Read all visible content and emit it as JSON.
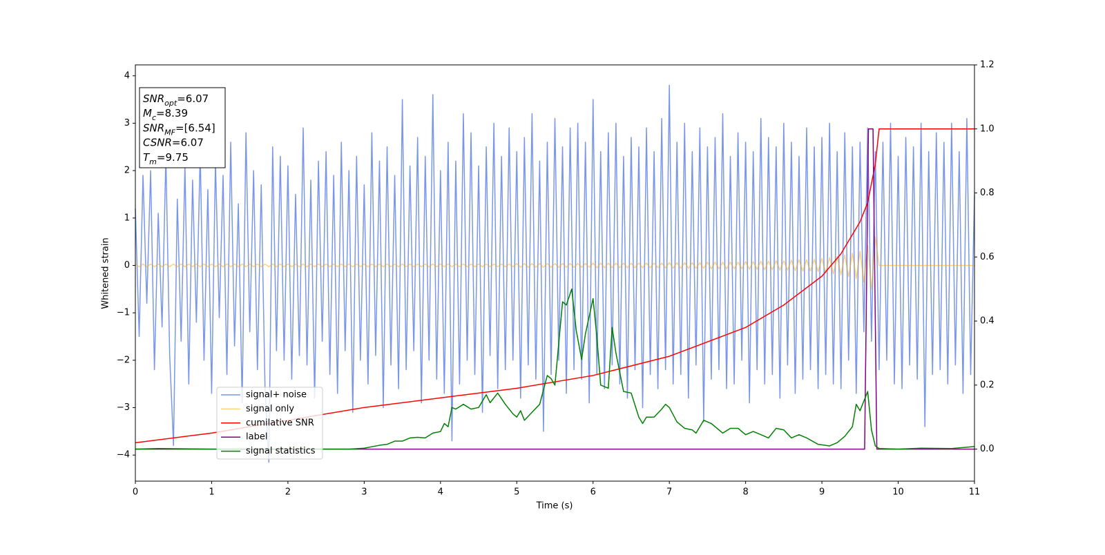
{
  "chart_data": {
    "type": "line",
    "xlabel": "Time (s)",
    "ylabel": "Whitened strain",
    "xlim": [
      0,
      11
    ],
    "xticks": [
      0,
      1,
      2,
      3,
      4,
      5,
      6,
      7,
      8,
      9,
      10,
      11
    ],
    "ylim": [
      -4.55,
      4.23
    ],
    "yticks": [
      {
        "value": -4,
        "label": "−4"
      },
      {
        "value": -3,
        "label": "−3"
      },
      {
        "value": -2,
        "label": "−2"
      },
      {
        "value": -1,
        "label": "−1"
      },
      0,
      1,
      2,
      3,
      4
    ],
    "y2lim": [
      -0.1,
      1.2
    ],
    "y2ticks": [
      {
        "value": 0,
        "label": "0.0"
      },
      0.2,
      0.4,
      0.6,
      0.8,
      {
        "value": 1,
        "label": "1.0"
      },
      1.2
    ],
    "legend": "lower left",
    "info_box": [
      {
        "symbol": "SNR",
        "subscript": "opt",
        "text": "=6.07"
      },
      {
        "symbol": "M",
        "subscript": "c",
        "text": "=8.39"
      },
      {
        "symbol": "SNR",
        "subscript": "MF",
        "text": "=[6.54]"
      },
      {
        "symbol": "CSNR",
        "text": "=6.07"
      },
      {
        "symbol": "T",
        "subscript": "m",
        "text": "=9.75"
      }
    ],
    "x": [
      0,
      0.05,
      0.1,
      0.15,
      0.2,
      0.25,
      0.3,
      0.35,
      0.4,
      0.45,
      0.5,
      0.55,
      0.6,
      0.65,
      0.7,
      0.75,
      0.8,
      0.85,
      0.9,
      0.95,
      1,
      1.05,
      1.1,
      1.15,
      1.2,
      1.25,
      1.3,
      1.35,
      1.4,
      1.45,
      1.5,
      1.55,
      1.6,
      1.65,
      1.7,
      1.75,
      1.8,
      1.85,
      1.9,
      1.95,
      2,
      2.05,
      2.1,
      2.15,
      2.2,
      2.25,
      2.3,
      2.35,
      2.4,
      2.45,
      2.5,
      2.55,
      2.6,
      2.65,
      2.7,
      2.75,
      2.8,
      2.85,
      2.9,
      2.95,
      3,
      3.05,
      3.1,
      3.15,
      3.2,
      3.25,
      3.3,
      3.35,
      3.4,
      3.45,
      3.5,
      3.55,
      3.6,
      3.65,
      3.7,
      3.75,
      3.8,
      3.85,
      3.9,
      3.95,
      4,
      4.05,
      4.1,
      4.15,
      4.2,
      4.25,
      4.3,
      4.35,
      4.4,
      4.45,
      4.5,
      4.55,
      4.6,
      4.65,
      4.7,
      4.75,
      4.8,
      4.85,
      4.9,
      4.95,
      5,
      5.05,
      5.1,
      5.15,
      5.2,
      5.25,
      5.3,
      5.35,
      5.4,
      5.45,
      5.5,
      5.55,
      5.6,
      5.65,
      5.7,
      5.75,
      5.8,
      5.85,
      5.9,
      5.95,
      6,
      6.05,
      6.1,
      6.15,
      6.2,
      6.25,
      6.3,
      6.35,
      6.4,
      6.45,
      6.5,
      6.55,
      6.6,
      6.65,
      6.7,
      6.75,
      6.8,
      6.85,
      6.9,
      6.95,
      7,
      7.05,
      7.1,
      7.15,
      7.2,
      7.25,
      7.3,
      7.35,
      7.4,
      7.45,
      7.5,
      7.55,
      7.6,
      7.65,
      7.7,
      7.75,
      7.8,
      7.85,
      7.9,
      7.95,
      8,
      8.05,
      8.1,
      8.15,
      8.2,
      8.25,
      8.3,
      8.35,
      8.4,
      8.45,
      8.5,
      8.55,
      8.6,
      8.65,
      8.7,
      8.75,
      8.8,
      8.85,
      8.9,
      8.95,
      9,
      9.05,
      9.1,
      9.15,
      9.2,
      9.25,
      9.3,
      9.35,
      9.4,
      9.45,
      9.5,
      9.55,
      9.6,
      9.65,
      9.7,
      9.75,
      9.8,
      9.85,
      9.9,
      9.95,
      10,
      10.05,
      10.1,
      10.15,
      10.2,
      10.25,
      10.3,
      10.35,
      10.4,
      10.45,
      10.5,
      10.55,
      10.6,
      10.65,
      10.7,
      10.75,
      10.8,
      10.85,
      10.9,
      10.95,
      11
    ],
    "series": [
      {
        "name": "signal+ noise",
        "color": "#4169e1",
        "alpha": 0.7,
        "axis": "y",
        "values": [
          1.2,
          -1.5,
          1.9,
          -0.8,
          2.0,
          -2.2,
          1.1,
          -1.3,
          2.3,
          -1.9,
          -3.8,
          1.4,
          -1.6,
          2.1,
          -2.5,
          1.8,
          -1.2,
          2.4,
          -2.0,
          1.6,
          -2.7,
          2.2,
          -1.1,
          1.9,
          -2.3,
          2.6,
          -1.7,
          1.3,
          -2.9,
          2.8,
          -1.4,
          2.0,
          -2.2,
          1.7,
          -2.6,
          -4.15,
          2.5,
          -1.8,
          2.3,
          -2.0,
          2.1,
          -2.4,
          1.5,
          -1.9,
          2.9,
          -2.1,
          1.8,
          -2.8,
          2.2,
          -1.6,
          2.4,
          -2.3,
          1.9,
          -2.7,
          2.6,
          -1.8,
          2.0,
          -3.1,
          2.3,
          -2.0,
          1.7,
          -2.5,
          2.8,
          -1.9,
          2.2,
          -3.0,
          2.5,
          -2.1,
          1.9,
          -2.6,
          3.5,
          -2.2,
          2.1,
          -1.8,
          2.7,
          -2.9,
          2.3,
          -2.0,
          3.6,
          -2.4,
          2.0,
          -2.7,
          2.6,
          -3.7,
          2.2,
          -2.5,
          3.2,
          -2.0,
          2.8,
          -2.3,
          2.1,
          -3.1,
          2.5,
          -1.9,
          3.0,
          -2.6,
          2.3,
          -2.2,
          2.9,
          -2.0,
          2.4,
          -2.8,
          2.7,
          -2.1,
          3.2,
          -2.4,
          2.2,
          -3.5,
          2.6,
          -2.3,
          3.1,
          -2.0,
          2.5,
          -2.7,
          2.9,
          -2.2,
          3.0,
          -2.4,
          2.6,
          -2.9,
          3.5,
          -2.3,
          2.4,
          -2.6,
          2.8,
          -2.1,
          3.0,
          -2.5,
          2.3,
          -2.8,
          2.7,
          -2.2,
          2.5,
          -3.0,
          2.9,
          -2.3,
          2.4,
          -2.6,
          3.1,
          -2.2,
          3.8,
          -2.5,
          2.6,
          -2.3,
          3.0,
          -2.8,
          2.4,
          -2.1,
          2.9,
          -3.3,
          2.5,
          -2.4,
          2.7,
          -2.2,
          3.2,
          -2.6,
          2.3,
          -2.5,
          2.8,
          -2.0,
          2.6,
          -2.9,
          2.4,
          -2.2,
          3.1,
          -2.5,
          2.7,
          -2.3,
          2.5,
          -2.8,
          3.0,
          -2.1,
          2.6,
          -2.7,
          2.3,
          -2.4,
          2.9,
          -2.2,
          2.5,
          -2.6,
          2.7,
          -2.3,
          3.0,
          -2.5,
          2.4,
          -2.6,
          2.8,
          -2.0,
          2.5,
          -2.7,
          2.6,
          -1.4,
          2.9,
          -1.6,
          2.4,
          -2.2,
          2.6,
          -2.0,
          3.0,
          -2.5,
          2.3,
          -2.6,
          2.7,
          -2.1,
          2.5,
          -2.4,
          3.0,
          -3.4,
          2.4,
          -2.3,
          2.8,
          -2.2,
          2.6,
          -2.5,
          3.0,
          -2.1,
          2.4,
          -2.7,
          3.1,
          -2.3,
          1.5
        ]
      },
      {
        "name": "signal only",
        "color": "#ffa500",
        "alpha": 0.5,
        "axis": "y",
        "values": [
          0.03,
          -0.03,
          0.03,
          -0.03,
          0.03,
          -0.03,
          0.03,
          -0.03,
          0.03,
          -0.03,
          0.03,
          -0.03,
          0.03,
          -0.03,
          0.03,
          -0.03,
          0.03,
          -0.03,
          0.03,
          -0.03,
          0.03,
          -0.03,
          0.03,
          -0.03,
          0.03,
          -0.03,
          0.03,
          -0.03,
          0.03,
          -0.03,
          0.03,
          -0.03,
          0.03,
          -0.03,
          0.03,
          -0.03,
          0.03,
          -0.03,
          0.03,
          -0.03,
          0.03,
          -0.03,
          0.03,
          -0.03,
          0.03,
          -0.03,
          0.03,
          -0.03,
          0.03,
          -0.03,
          0.03,
          -0.03,
          0.03,
          -0.03,
          0.03,
          -0.03,
          0.03,
          -0.03,
          0.03,
          -0.03,
          0.03,
          -0.03,
          0.03,
          -0.03,
          0.03,
          -0.03,
          0.03,
          -0.03,
          0.03,
          -0.03,
          0.03,
          -0.03,
          0.03,
          -0.03,
          0.03,
          -0.03,
          0.03,
          -0.03,
          0.03,
          -0.03,
          0.03,
          -0.03,
          0.03,
          -0.03,
          0.03,
          -0.03,
          0.03,
          -0.03,
          0.03,
          -0.03,
          0.03,
          -0.03,
          0.03,
          -0.03,
          0.03,
          -0.03,
          0.03,
          -0.03,
          0.03,
          -0.03,
          0.04,
          -0.04,
          0.04,
          -0.04,
          0.04,
          -0.04,
          0.04,
          -0.04,
          0.04,
          -0.04,
          0.04,
          -0.04,
          0.04,
          -0.04,
          0.04,
          -0.04,
          0.04,
          -0.04,
          0.04,
          -0.04,
          0.05,
          -0.05,
          0.05,
          -0.05,
          0.05,
          -0.05,
          0.05,
          -0.05,
          0.05,
          -0.05,
          0.05,
          -0.05,
          0.05,
          -0.05,
          0.05,
          -0.05,
          0.05,
          -0.05,
          0.05,
          -0.05,
          0.06,
          -0.06,
          0.06,
          -0.06,
          0.06,
          -0.06,
          0.06,
          -0.06,
          0.06,
          -0.06,
          0.07,
          -0.07,
          0.07,
          -0.07,
          0.07,
          -0.07,
          0.07,
          -0.07,
          0.07,
          -0.07,
          0.08,
          -0.08,
          0.08,
          -0.08,
          0.09,
          -0.09,
          0.09,
          -0.09,
          0.1,
          -0.1,
          0.1,
          -0.1,
          0.11,
          -0.11,
          0.12,
          -0.12,
          0.12,
          -0.12,
          0.13,
          -0.13,
          0.15,
          -0.16,
          0.17,
          -0.18,
          0.19,
          -0.2,
          0.22,
          -0.24,
          0.26,
          -0.28,
          0.3,
          -0.35,
          0.42,
          -0.5,
          0.6,
          0,
          0,
          0,
          0,
          0,
          0,
          0,
          0,
          0,
          0,
          0,
          0,
          0,
          0,
          0,
          0,
          0,
          0,
          0,
          0,
          0,
          0,
          0,
          0,
          0,
          0
        ]
      },
      {
        "name": "cumilative SNR",
        "color": "#ff0000",
        "alpha": 1,
        "axis": "y2",
        "x": [
          0,
          1,
          2,
          3,
          4,
          5,
          6,
          7,
          8,
          8.5,
          9,
          9.25,
          9.5,
          9.6,
          9.7,
          9.75,
          9.76,
          11
        ],
        "values": [
          0.02,
          0.05,
          0.09,
          0.13,
          0.16,
          0.19,
          0.23,
          0.29,
          0.38,
          0.45,
          0.54,
          0.61,
          0.71,
          0.77,
          0.89,
          1.0,
          1.0,
          1.0
        ]
      },
      {
        "name": "label",
        "color": "#800080",
        "alpha": 1,
        "axis": "y2",
        "x": [
          0,
          9.56,
          9.61,
          9.67,
          9.72,
          11
        ],
        "values": [
          0,
          0,
          1,
          1,
          0,
          0
        ]
      },
      {
        "name": "signal statistics",
        "color": "#008000",
        "alpha": 1,
        "axis": "y2",
        "x": [
          0,
          0.3,
          1,
          2,
          2.8,
          3,
          3.2,
          3.3,
          3.4,
          3.5,
          3.6,
          3.7,
          3.8,
          3.9,
          4.0,
          4.05,
          4.1,
          4.15,
          4.2,
          4.3,
          4.4,
          4.5,
          4.6,
          4.65,
          4.75,
          4.85,
          4.95,
          5.0,
          5.05,
          5.1,
          5.2,
          5.3,
          5.4,
          5.45,
          5.5,
          5.55,
          5.6,
          5.65,
          5.72,
          5.78,
          5.85,
          5.9,
          6.0,
          6.05,
          6.1,
          6.2,
          6.25,
          6.3,
          6.4,
          6.5,
          6.6,
          6.65,
          6.7,
          6.8,
          6.9,
          6.95,
          7.0,
          7.1,
          7.2,
          7.3,
          7.35,
          7.45,
          7.55,
          7.7,
          7.8,
          7.9,
          8.0,
          8.1,
          8.2,
          8.3,
          8.4,
          8.5,
          8.6,
          8.7,
          8.8,
          8.95,
          9.1,
          9.2,
          9.3,
          9.4,
          9.45,
          9.5,
          9.6,
          9.65,
          9.7,
          9.75,
          10.0,
          10.3,
          10.7,
          11
        ],
        "values": [
          0,
          0.002,
          0,
          0,
          0,
          0.003,
          0.012,
          0.015,
          0.025,
          0.025,
          0.035,
          0.037,
          0.035,
          0.05,
          0.055,
          0.08,
          0.07,
          0.13,
          0.125,
          0.14,
          0.125,
          0.13,
          0.17,
          0.145,
          0.175,
          0.14,
          0.11,
          0.1,
          0.12,
          0.09,
          0.115,
          0.14,
          0.23,
          0.22,
          0.2,
          0.33,
          0.46,
          0.45,
          0.5,
          0.37,
          0.28,
          0.36,
          0.47,
          0.35,
          0.2,
          0.19,
          0.38,
          0.3,
          0.18,
          0.175,
          0.1,
          0.08,
          0.1,
          0.1,
          0.125,
          0.14,
          0.13,
          0.085,
          0.065,
          0.06,
          0.05,
          0.09,
          0.08,
          0.05,
          0.065,
          0.065,
          0.045,
          0.055,
          0.045,
          0.035,
          0.065,
          0.06,
          0.035,
          0.045,
          0.035,
          0.015,
          0.01,
          0.02,
          0.04,
          0.07,
          0.14,
          0.12,
          0.18,
          0.06,
          0.01,
          0.002,
          0,
          0.003,
          0.002,
          0.008
        ]
      }
    ]
  }
}
